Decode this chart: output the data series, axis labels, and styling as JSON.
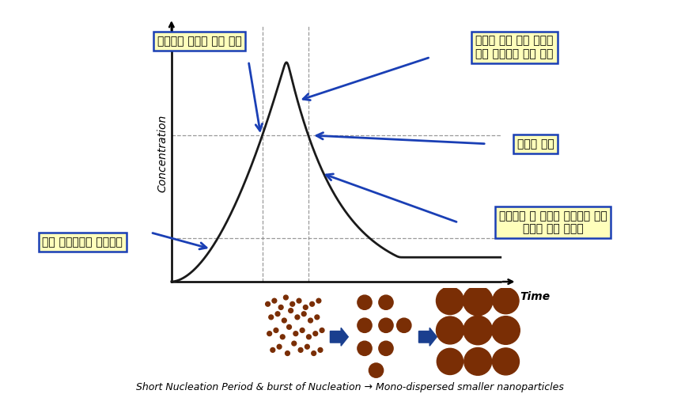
{
  "background_color": "#ffffff",
  "curve_color": "#1a1a1a",
  "annotation_box_color": "#ffffbb",
  "annotation_box_edge": "#1a3fb5",
  "arrow_color": "#1a3fb5",
  "dashed_line_color": "#888888",
  "particle_color": "#7a2e05",
  "arrow_blue_fill": "#1a3f8f",
  "ylabel": "Concentration",
  "xlabel_time": "Time",
  "label1": "핵생성에 필요한 임계 농도",
  "label2": "핵생성 의한 금속 소모로\n금속 클러스터 농도 감소",
  "label3": "핵생성 중지",
  "label4": "추가적인 핵 생성은 일어나지 않고\n생성된 핵이 성장함",
  "label5": "금속 클러스터의 농도증가",
  "bottom_text": "Short Nucleation Period & burst of Nucleation → Mono-dispersed smaller nanoparticles",
  "figsize": [
    8.85,
    4.98
  ],
  "dpi": 100
}
